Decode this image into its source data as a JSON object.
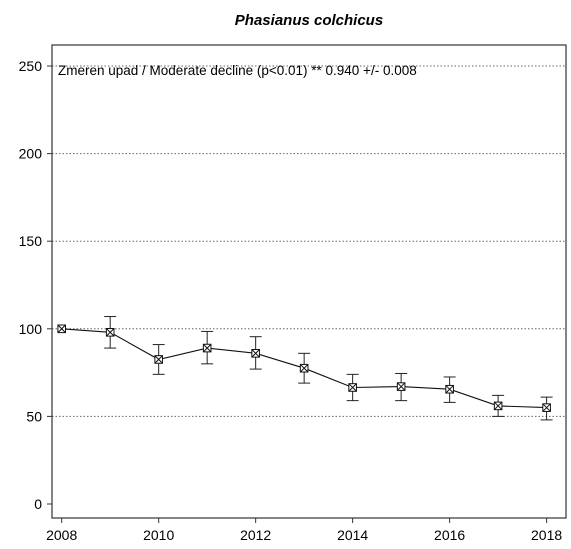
{
  "chart_data": {
    "type": "line",
    "title": "Phasianus colchicus",
    "annotation": "Zmeren upad / Moderate decline (p<0.01) **  0.940 +/- 0.008",
    "xlabel": "",
    "ylabel": "",
    "xlim": [
      2007.8,
      2018.4
    ],
    "ylim": [
      -8,
      262
    ],
    "x_ticks": [
      2008,
      2010,
      2012,
      2014,
      2016,
      2018
    ],
    "y_ticks": [
      0,
      50,
      100,
      150,
      200,
      250
    ],
    "grid": "horizontal dotted",
    "legend": "none",
    "series": [
      {
        "x": [
          2008,
          2009,
          2010,
          2011,
          2012,
          2013,
          2014,
          2015,
          2016,
          2017,
          2018
        ],
        "values": [
          100,
          98,
          82.5,
          89,
          86,
          77.5,
          66.5,
          67,
          65.5,
          56,
          55
        ],
        "error_low": [
          100,
          89,
          74,
          80,
          77,
          69,
          59,
          59,
          58,
          50,
          48
        ],
        "error_high": [
          100,
          107,
          91,
          98.5,
          95.5,
          86,
          74,
          74.5,
          72.5,
          62,
          61
        ]
      }
    ]
  }
}
